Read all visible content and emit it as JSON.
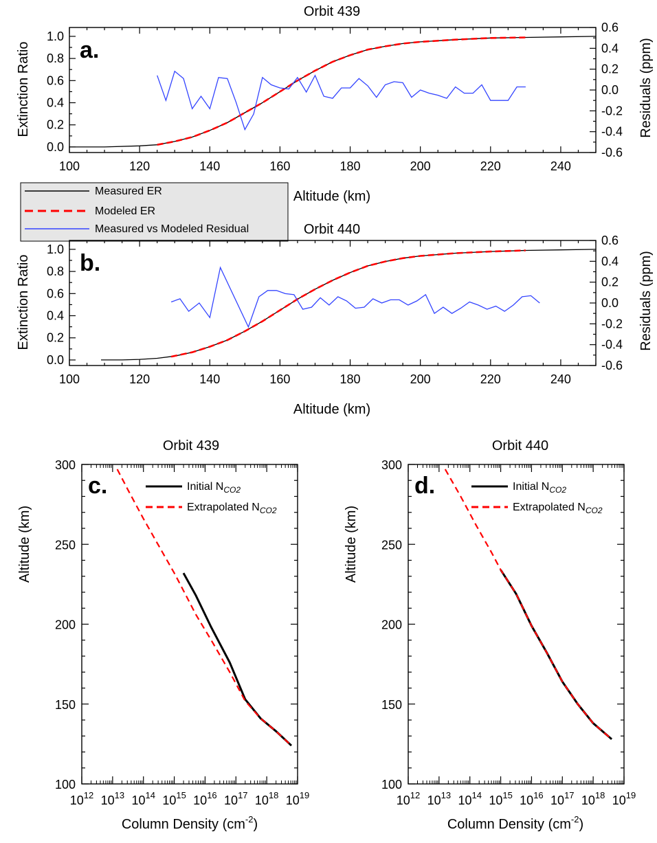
{
  "figure": {
    "legend_top": {
      "items": [
        {
          "label": "Measured ER",
          "color": "#000000",
          "style": "solid"
        },
        {
          "label": "Modeled ER",
          "color": "#ff0000",
          "style": "dashed"
        },
        {
          "label": "Measured vs Modeled Residual",
          "color": "#3344ff",
          "style": "solid"
        }
      ]
    }
  },
  "chart_data": [
    {
      "type": "line",
      "panel": "a.",
      "title": "Orbit 439",
      "xlabel": "Altitude (km)",
      "ylabel": "Extinction Ratio",
      "y2label": "Residuals (ppm)",
      "xlim": [
        100,
        250
      ],
      "ylim": [
        -0.05,
        1.08
      ],
      "y2lim": [
        -0.6,
        0.6
      ],
      "xticks": [
        100,
        120,
        140,
        160,
        180,
        200,
        220,
        240
      ],
      "yticks": [
        0.0,
        0.2,
        0.4,
        0.6,
        0.8,
        1.0
      ],
      "ytick_labels": [
        "0.0",
        "0.2",
        "0.4",
        "0.6",
        "0.8",
        "1.0"
      ],
      "y2ticks": [
        -0.6,
        -0.4,
        -0.2,
        0.0,
        0.2,
        0.4,
        0.6
      ],
      "y2tick_labels": [
        "-0.6",
        "-0.4",
        "-0.2",
        "0.0",
        "0.2",
        "0.4",
        "0.6"
      ],
      "series": [
        {
          "name": "Measured ER",
          "color": "#000000",
          "axis": "left",
          "x": [
            100,
            110,
            120,
            125,
            130,
            135,
            140,
            145,
            150,
            155,
            160,
            165,
            170,
            175,
            180,
            185,
            190,
            195,
            200,
            210,
            220,
            230,
            240,
            250
          ],
          "y": [
            0.0,
            0.0,
            0.01,
            0.02,
            0.05,
            0.09,
            0.15,
            0.22,
            0.31,
            0.4,
            0.5,
            0.6,
            0.69,
            0.77,
            0.83,
            0.88,
            0.91,
            0.935,
            0.95,
            0.97,
            0.985,
            0.99,
            0.995,
            1.0
          ]
        },
        {
          "name": "Modeled ER",
          "color": "#ff0000",
          "axis": "left",
          "dashed": true,
          "x": [
            125,
            130,
            135,
            140,
            145,
            150,
            155,
            160,
            165,
            170,
            175,
            180,
            185,
            190,
            195,
            200,
            210,
            220,
            230
          ],
          "y": [
            0.02,
            0.05,
            0.09,
            0.15,
            0.22,
            0.31,
            0.4,
            0.5,
            0.6,
            0.69,
            0.77,
            0.83,
            0.88,
            0.91,
            0.935,
            0.95,
            0.97,
            0.985,
            0.99
          ]
        },
        {
          "name": "Measured vs Modeled Residual",
          "color": "#3344ff",
          "axis": "right",
          "x": [
            125,
            127.5,
            130,
            132.5,
            135,
            137.5,
            140,
            142.5,
            145,
            147.5,
            150,
            152.5,
            155,
            157.5,
            160,
            162.5,
            165,
            167.5,
            170,
            172.5,
            175,
            177.5,
            180,
            182.5,
            185,
            187.5,
            190,
            192.5,
            195,
            197.5,
            200,
            202.5,
            205,
            207.5,
            210,
            212.5,
            215,
            217.5,
            220,
            222.5,
            225,
            227.5,
            230
          ],
          "y": [
            0.14,
            -0.1,
            0.18,
            0.11,
            -0.18,
            -0.06,
            -0.18,
            0.12,
            0.11,
            -0.12,
            -0.38,
            -0.23,
            0.12,
            0.05,
            0.02,
            0.01,
            0.12,
            -0.02,
            0.14,
            -0.06,
            -0.08,
            0.02,
            0.02,
            0.11,
            0.04,
            -0.07,
            0.05,
            0.08,
            0.07,
            -0.07,
            0.0,
            -0.03,
            -0.05,
            -0.08,
            0.03,
            -0.03,
            -0.03,
            0.05,
            -0.1,
            -0.1,
            -0.1,
            0.03,
            0.03
          ]
        }
      ]
    },
    {
      "type": "line",
      "panel": "b.",
      "title": "Orbit 440",
      "xlabel": "Altitude (km)",
      "ylabel": "Extinction Ratio",
      "y2label": "Residuals (ppm)",
      "xlim": [
        100,
        250
      ],
      "ylim": [
        -0.05,
        1.08
      ],
      "y2lim": [
        -0.6,
        0.6
      ],
      "xticks": [
        100,
        120,
        140,
        160,
        180,
        200,
        220,
        240
      ],
      "yticks": [
        0.0,
        0.2,
        0.4,
        0.6,
        0.8,
        1.0
      ],
      "ytick_labels": [
        "0.0",
        "0.2",
        "0.4",
        "0.6",
        "0.8",
        "1.0"
      ],
      "y2ticks": [
        -0.6,
        -0.4,
        -0.2,
        0.0,
        0.2,
        0.4,
        0.6
      ],
      "y2tick_labels": [
        "-0.6",
        "-0.4",
        "-0.2",
        "0.0",
        "0.2",
        "0.4",
        "0.6"
      ],
      "series": [
        {
          "name": "Measured ER",
          "color": "#000000",
          "axis": "left",
          "x": [
            109,
            115,
            120,
            125,
            130,
            135,
            140,
            145,
            150,
            155,
            160,
            165,
            170,
            175,
            180,
            185,
            190,
            195,
            200,
            210,
            220,
            230,
            240,
            250
          ],
          "y": [
            0.0,
            0.0,
            0.005,
            0.015,
            0.035,
            0.07,
            0.12,
            0.18,
            0.26,
            0.35,
            0.45,
            0.55,
            0.64,
            0.72,
            0.79,
            0.85,
            0.89,
            0.92,
            0.94,
            0.965,
            0.98,
            0.99,
            0.995,
            1.0
          ]
        },
        {
          "name": "Modeled ER",
          "color": "#ff0000",
          "axis": "left",
          "dashed": true,
          "x": [
            129,
            135,
            140,
            145,
            150,
            155,
            160,
            165,
            170,
            175,
            180,
            185,
            190,
            195,
            200,
            210,
            220,
            230
          ],
          "y": [
            0.03,
            0.07,
            0.12,
            0.18,
            0.26,
            0.35,
            0.45,
            0.55,
            0.64,
            0.72,
            0.79,
            0.85,
            0.89,
            0.92,
            0.94,
            0.965,
            0.98,
            0.99
          ]
        },
        {
          "name": "Measured vs Modeled Residual",
          "color": "#3344ff",
          "axis": "right",
          "x": [
            129,
            131.5,
            134,
            137,
            140,
            143,
            151,
            154,
            156.5,
            159,
            161.5,
            164,
            166.5,
            169,
            171.5,
            174,
            176.5,
            179,
            181.5,
            184,
            186.5,
            189,
            191.5,
            194,
            196.5,
            199,
            201.5,
            204,
            206.5,
            209,
            211.5,
            214,
            216.5,
            219,
            221.5,
            224,
            226.5,
            229,
            231.5,
            234
          ],
          "y": [
            0.01,
            0.04,
            -0.08,
            0.0,
            -0.14,
            0.34,
            -0.23,
            0.06,
            0.12,
            0.12,
            0.09,
            0.08,
            -0.06,
            -0.04,
            0.05,
            -0.02,
            0.06,
            0.02,
            -0.05,
            -0.04,
            0.04,
            0.0,
            0.03,
            0.03,
            -0.02,
            0.02,
            0.08,
            -0.1,
            -0.04,
            -0.1,
            -0.05,
            0.01,
            -0.02,
            -0.06,
            -0.03,
            -0.08,
            -0.02,
            0.06,
            0.07,
            0.0
          ]
        }
      ]
    },
    {
      "type": "line",
      "panel": "c.",
      "title": "Orbit 439",
      "xlabel": "Column Density (cm-2)",
      "ylabel": "Altitude (km)",
      "xscale": "log",
      "xlim_log10": [
        12,
        19
      ],
      "ylim": [
        100,
        300
      ],
      "xticks_log10": [
        12,
        13,
        14,
        15,
        16,
        17,
        18,
        19
      ],
      "yticks": [
        100,
        150,
        200,
        250,
        300
      ],
      "series": [
        {
          "name": "Initial N_CO2",
          "color": "#000000",
          "log10x": [
            15.3,
            15.7,
            16.2,
            16.8,
            17.3,
            17.8,
            18.3,
            18.8
          ],
          "y": [
            232,
            218,
            198,
            176,
            153,
            141,
            133,
            124
          ]
        },
        {
          "name": "Extrapolated N_CO2",
          "color": "#ff0000",
          "dashed": true,
          "log10x": [
            13.15,
            13.5,
            14.0,
            14.5,
            15.0,
            15.3,
            15.7,
            16.2,
            16.8,
            17.3,
            17.8,
            18.3,
            18.8
          ],
          "y": [
            297,
            284,
            266,
            249,
            232,
            221,
            206,
            190,
            170,
            152,
            141,
            133,
            124
          ]
        }
      ],
      "legend": [
        {
          "prefix": "Initial N",
          "sub": "CO2",
          "color": "#000000",
          "style": "solid"
        },
        {
          "prefix": "Extrapolated N",
          "sub": "CO2",
          "color": "#ff0000",
          "style": "dashed"
        }
      ]
    },
    {
      "type": "line",
      "panel": "d.",
      "title": "Orbit 440",
      "xlabel": "Column Density (cm-2)",
      "ylabel": "Altitude (km)",
      "xscale": "log",
      "xlim_log10": [
        12,
        19
      ],
      "ylim": [
        100,
        300
      ],
      "xticks_log10": [
        12,
        13,
        14,
        15,
        16,
        17,
        18,
        19
      ],
      "yticks": [
        100,
        150,
        200,
        250,
        300
      ],
      "series": [
        {
          "name": "Initial N_CO2",
          "color": "#000000",
          "log10x": [
            15.0,
            15.5,
            16.0,
            16.5,
            17.0,
            17.5,
            18.0,
            18.6
          ],
          "y": [
            234,
            219,
            199,
            182,
            164,
            150,
            138,
            128
          ]
        },
        {
          "name": "Extrapolated N_CO2",
          "color": "#ff0000",
          "dashed": true,
          "log10x": [
            13.2,
            13.7,
            14.2,
            14.7,
            15.0,
            15.5,
            16.0,
            16.5,
            17.0,
            17.5,
            18.0,
            18.6
          ],
          "y": [
            297,
            280,
            262,
            245,
            234,
            219,
            199,
            182,
            164,
            150,
            138,
            128
          ]
        }
      ],
      "legend": [
        {
          "prefix": "Initial N",
          "sub": "CO2",
          "color": "#000000",
          "style": "solid"
        },
        {
          "prefix": "Extrapolated N",
          "sub": "CO2",
          "color": "#ff0000",
          "style": "dashed"
        }
      ]
    }
  ]
}
